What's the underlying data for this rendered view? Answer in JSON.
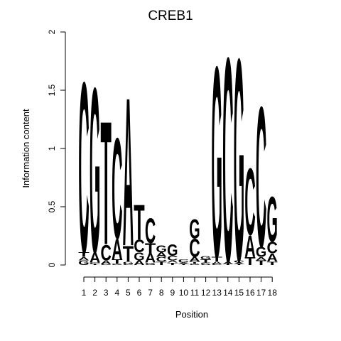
{
  "chart_data": {
    "type": "sequence-logo",
    "title": "CREB1",
    "xlabel": "Position",
    "ylabel": "Information content",
    "ylim": [
      0,
      2
    ],
    "yticks": [
      "0",
      "0.5",
      "1",
      "1.5",
      "2"
    ],
    "positions": [
      "1",
      "2",
      "3",
      "4",
      "5",
      "6",
      "7",
      "8",
      "9",
      "10",
      "11",
      "12",
      "13",
      "14",
      "15",
      "16",
      "17",
      "18"
    ],
    "colors": {
      "A": "#00cc00",
      "C": "#0000ee",
      "G": "#ffa500",
      "T": "#ff0000"
    },
    "stacks": [
      [
        [
          "G",
          0.04
        ],
        [
          "A",
          0.03
        ],
        [
          "T",
          0.04
        ],
        [
          "C",
          1.51
        ]
      ],
      [
        [
          "T",
          0.01
        ],
        [
          "C",
          0.01
        ],
        [
          "A",
          0.09
        ],
        [
          "G",
          1.46
        ]
      ],
      [
        [
          "G",
          0.01
        ],
        [
          "A",
          0.03
        ],
        [
          "C",
          0.14
        ],
        [
          "T",
          1.09
        ]
      ],
      [
        [
          "G",
          0.01
        ],
        [
          "T",
          0.04
        ],
        [
          "A",
          0.18
        ],
        [
          "C",
          0.89
        ]
      ],
      [
        [
          "C",
          0.01
        ],
        [
          "G",
          0.02
        ],
        [
          "T",
          0.14
        ],
        [
          "A",
          1.31
        ]
      ],
      [
        [
          "A",
          0.04
        ],
        [
          "G",
          0.07
        ],
        [
          "C",
          0.11
        ],
        [
          "T",
          0.31
        ]
      ],
      [
        [
          "G",
          0.02
        ],
        [
          "A",
          0.08
        ],
        [
          "T",
          0.09
        ],
        [
          "C",
          0.22
        ]
      ],
      [
        [
          "T",
          0.03
        ],
        [
          "C",
          0.04
        ],
        [
          "A",
          0.04
        ],
        [
          "G",
          0.06
        ]
      ],
      [
        [
          "T",
          0.02
        ],
        [
          "A",
          0.02
        ],
        [
          "C",
          0.04
        ],
        [
          "G",
          0.1
        ]
      ],
      [
        [
          "T",
          0.01
        ],
        [
          "A",
          0.01
        ],
        [
          "G",
          0.01
        ],
        [
          "C",
          0.02
        ]
      ],
      [
        [
          "G",
          0.01
        ],
        [
          "T",
          0.02
        ],
        [
          "A",
          0.04
        ],
        [
          "C",
          0.16
        ],
        [
          "G",
          0.17
        ]
      ],
      [
        [
          "A",
          0.01
        ],
        [
          "C",
          0.01
        ],
        [
          "T",
          0.03
        ],
        [
          "G",
          0.03
        ]
      ],
      [
        [
          "C",
          0.01
        ],
        [
          "A",
          0.02
        ],
        [
          "T",
          0.04
        ],
        [
          "G",
          1.69
        ]
      ],
      [
        [
          "T",
          0.01
        ],
        [
          "A",
          0.02
        ],
        [
          "C",
          1.81
        ]
      ],
      [
        [
          "T",
          0.01
        ],
        [
          "A",
          0.01
        ],
        [
          "C",
          0.02
        ],
        [
          "G",
          1.79
        ]
      ],
      [
        [
          "T",
          0.07
        ],
        [
          "A",
          0.19
        ],
        [
          "C",
          0.59
        ]
      ],
      [
        [
          "T",
          0.04
        ],
        [
          "A",
          0.03
        ],
        [
          "G",
          0.09
        ],
        [
          "C",
          1.24
        ]
      ],
      [
        [
          "T",
          0.03
        ],
        [
          "A",
          0.07
        ],
        [
          "C",
          0.1
        ],
        [
          "G",
          0.4
        ]
      ]
    ]
  }
}
